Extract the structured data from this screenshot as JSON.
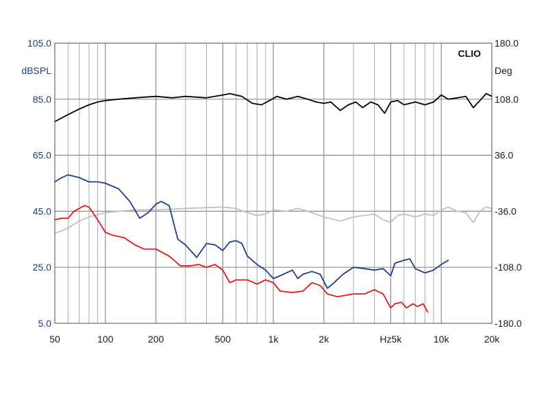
{
  "chart_data": {
    "type": "line",
    "brand": "CLIO",
    "left_axis": {
      "unit": "dBSPL",
      "min": 5,
      "max": 105,
      "ticks": [
        {
          "value": 105,
          "label": "105.0"
        },
        {
          "value": 85,
          "label": "85.0"
        },
        {
          "value": 65,
          "label": "65.0"
        },
        {
          "value": 45,
          "label": "45.0"
        },
        {
          "value": 25,
          "label": "25.0"
        },
        {
          "value": 5,
          "label": "5.0"
        }
      ]
    },
    "right_axis": {
      "unit": "Deg",
      "min": -180,
      "max": 180,
      "ticks": [
        {
          "value": 180,
          "label": "180.0"
        },
        {
          "value": 108,
          "label": "108.0"
        },
        {
          "value": 36,
          "label": "36.0"
        },
        {
          "value": -36,
          "label": "-36.0"
        },
        {
          "value": -108,
          "label": "-108.0"
        },
        {
          "value": -180,
          "label": "-180.0"
        }
      ]
    },
    "x_axis": {
      "unit": "Hz",
      "scale": "log",
      "min": 50,
      "max": 20000,
      "ticks": [
        {
          "value": 50,
          "label": "50"
        },
        {
          "value": 100,
          "label": "100"
        },
        {
          "value": 200,
          "label": "200"
        },
        {
          "value": 500,
          "label": "500"
        },
        {
          "value": 1000,
          "label": "1k"
        },
        {
          "value": 2000,
          "label": "2k"
        },
        {
          "value": 5000,
          "label": "Hz5k"
        },
        {
          "value": 10000,
          "label": "10k"
        },
        {
          "value": 20000,
          "label": "20k"
        }
      ]
    },
    "grid": true,
    "series": [
      {
        "color": "#000000",
        "axis": "left",
        "points": [
          [
            50,
            77
          ],
          [
            60,
            79.5
          ],
          [
            70,
            81.5
          ],
          [
            80,
            83
          ],
          [
            90,
            84
          ],
          [
            100,
            84.5
          ],
          [
            120,
            85
          ],
          [
            150,
            85.5
          ],
          [
            200,
            86
          ],
          [
            250,
            85.5
          ],
          [
            300,
            86
          ],
          [
            400,
            85.5
          ],
          [
            500,
            86.5
          ],
          [
            550,
            87
          ],
          [
            650,
            86
          ],
          [
            750,
            83.5
          ],
          [
            850,
            83
          ],
          [
            950,
            84.5
          ],
          [
            1050,
            86
          ],
          [
            1200,
            85
          ],
          [
            1400,
            86
          ],
          [
            1600,
            85
          ],
          [
            1800,
            84
          ],
          [
            2000,
            83.5
          ],
          [
            2200,
            84
          ],
          [
            2500,
            81
          ],
          [
            2800,
            83
          ],
          [
            3100,
            84
          ],
          [
            3400,
            82
          ],
          [
            3800,
            84
          ],
          [
            4200,
            83
          ],
          [
            4600,
            80
          ],
          [
            5000,
            84
          ],
          [
            5500,
            84.5
          ],
          [
            6000,
            83
          ],
          [
            7000,
            84
          ],
          [
            8000,
            83
          ],
          [
            9000,
            84
          ],
          [
            10000,
            86.5
          ],
          [
            11000,
            85
          ],
          [
            12500,
            85.5
          ],
          [
            14000,
            86
          ],
          [
            15500,
            82
          ],
          [
            17000,
            84.5
          ],
          [
            18500,
            87
          ],
          [
            20000,
            86
          ]
        ]
      },
      {
        "color": "#c0c0c0",
        "axis": "left",
        "points": [
          [
            50,
            37
          ],
          [
            60,
            39
          ],
          [
            70,
            41.5
          ],
          [
            80,
            43
          ],
          [
            100,
            44.5
          ],
          [
            150,
            45.5
          ],
          [
            200,
            45.5
          ],
          [
            300,
            46
          ],
          [
            500,
            46.5
          ],
          [
            600,
            46
          ],
          [
            700,
            44.5
          ],
          [
            800,
            43.5
          ],
          [
            900,
            44
          ],
          [
            1000,
            45.5
          ],
          [
            1200,
            45
          ],
          [
            1400,
            46
          ],
          [
            1600,
            45
          ],
          [
            2000,
            43
          ],
          [
            2500,
            41.5
          ],
          [
            3000,
            43
          ],
          [
            3500,
            43.5
          ],
          [
            4000,
            44
          ],
          [
            4500,
            42
          ],
          [
            5000,
            41
          ],
          [
            5500,
            43.5
          ],
          [
            6000,
            44
          ],
          [
            7000,
            43
          ],
          [
            8000,
            44
          ],
          [
            9000,
            43.5
          ],
          [
            10000,
            45.5
          ],
          [
            11000,
            46.5
          ],
          [
            12500,
            45
          ],
          [
            14000,
            44.5
          ],
          [
            15500,
            41
          ],
          [
            17000,
            45
          ],
          [
            18500,
            46.5
          ],
          [
            20000,
            46
          ]
        ]
      },
      {
        "color": "#1f3a8c",
        "axis": "left",
        "points": [
          [
            50,
            55.5
          ],
          [
            55,
            57
          ],
          [
            60,
            58
          ],
          [
            70,
            57
          ],
          [
            80,
            55.5
          ],
          [
            90,
            55.5
          ],
          [
            100,
            55
          ],
          [
            120,
            53
          ],
          [
            140,
            48.5
          ],
          [
            160,
            42.5
          ],
          [
            180,
            44.5
          ],
          [
            200,
            47.5
          ],
          [
            215,
            48.5
          ],
          [
            240,
            47
          ],
          [
            270,
            35
          ],
          [
            300,
            33
          ],
          [
            350,
            28.5
          ],
          [
            400,
            33.5
          ],
          [
            450,
            33
          ],
          [
            500,
            31
          ],
          [
            550,
            34
          ],
          [
            600,
            34.5
          ],
          [
            650,
            33.5
          ],
          [
            700,
            29
          ],
          [
            800,
            26
          ],
          [
            900,
            24
          ],
          [
            1000,
            21
          ],
          [
            1100,
            22
          ],
          [
            1300,
            24
          ],
          [
            1400,
            21
          ],
          [
            1500,
            22.5
          ],
          [
            1700,
            23.5
          ],
          [
            1900,
            22.5
          ],
          [
            2100,
            17.5
          ],
          [
            2300,
            19.5
          ],
          [
            2600,
            22.5
          ],
          [
            3000,
            25
          ],
          [
            3500,
            24.5
          ],
          [
            4000,
            24
          ],
          [
            4500,
            24.5
          ],
          [
            5000,
            22
          ],
          [
            5300,
            26.5
          ],
          [
            6000,
            27.5
          ],
          [
            6500,
            28
          ],
          [
            7000,
            24.5
          ],
          [
            8000,
            23
          ],
          [
            9000,
            24
          ],
          [
            10000,
            26
          ],
          [
            11000,
            27.5
          ]
        ]
      },
      {
        "color": "#e01818",
        "axis": "left",
        "points": [
          [
            50,
            42
          ],
          [
            55,
            42.5
          ],
          [
            60,
            42.5
          ],
          [
            65,
            45
          ],
          [
            70,
            46
          ],
          [
            75,
            47
          ],
          [
            80,
            46.5
          ],
          [
            90,
            42
          ],
          [
            100,
            37.5
          ],
          [
            110,
            36.5
          ],
          [
            130,
            35.5
          ],
          [
            150,
            33
          ],
          [
            170,
            31.5
          ],
          [
            200,
            31.5
          ],
          [
            240,
            29
          ],
          [
            280,
            25.5
          ],
          [
            320,
            25.5
          ],
          [
            360,
            26
          ],
          [
            400,
            25
          ],
          [
            450,
            26
          ],
          [
            500,
            24
          ],
          [
            550,
            19.5
          ],
          [
            600,
            20.5
          ],
          [
            700,
            20.5
          ],
          [
            800,
            19
          ],
          [
            900,
            20.5
          ],
          [
            1000,
            19.5
          ],
          [
            1100,
            16.5
          ],
          [
            1300,
            16
          ],
          [
            1500,
            16.5
          ],
          [
            1700,
            19.5
          ],
          [
            1900,
            18.5
          ],
          [
            2100,
            15.5
          ],
          [
            2400,
            14.5
          ],
          [
            2700,
            15
          ],
          [
            3000,
            15.5
          ],
          [
            3500,
            15.5
          ],
          [
            4000,
            17
          ],
          [
            4500,
            15.5
          ],
          [
            5000,
            10.5
          ],
          [
            5300,
            12
          ],
          [
            5800,
            12.5
          ],
          [
            6200,
            10.5
          ],
          [
            6800,
            12
          ],
          [
            7200,
            11
          ],
          [
            7800,
            12
          ],
          [
            8300,
            9
          ]
        ]
      }
    ]
  }
}
